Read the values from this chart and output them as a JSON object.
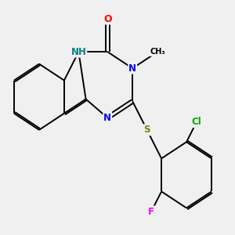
{
  "background_color": "#f0f0f0",
  "bond_color": "#000000",
  "atom_colors": {
    "N": "#0000ff",
    "NH": "#008080",
    "O": "#ff0000",
    "S": "#808000",
    "Cl": "#00aa00",
    "F": "#ff00ff",
    "C": "#000000"
  },
  "font_size": 9,
  "lw": 1.4,
  "doffset": 0.008
}
